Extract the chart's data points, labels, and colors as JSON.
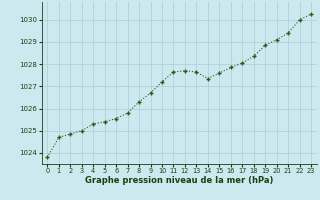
{
  "x": [
    0,
    1,
    2,
    3,
    4,
    5,
    6,
    7,
    8,
    9,
    10,
    11,
    12,
    13,
    14,
    15,
    16,
    17,
    18,
    19,
    20,
    21,
    22,
    23
  ],
  "y": [
    1023.8,
    1024.7,
    1024.85,
    1025.0,
    1025.3,
    1025.4,
    1025.55,
    1025.8,
    1026.3,
    1026.7,
    1027.2,
    1027.65,
    1027.7,
    1027.65,
    1027.35,
    1027.6,
    1027.85,
    1028.05,
    1028.35,
    1028.85,
    1029.1,
    1029.4,
    1030.0,
    1030.25
  ],
  "line_color": "#2d5a1b",
  "marker_color": "#2d5a1b",
  "bg_color": "#cce9f0",
  "grid_color": "#aacdd6",
  "xlabel": "Graphe pression niveau de la mer (hPa)",
  "xlabel_color": "#1a4010",
  "ytick_labels": [
    "1024",
    "1025",
    "1026",
    "1027",
    "1028",
    "1029",
    "1030"
  ],
  "ytick_vals": [
    1024,
    1025,
    1026,
    1027,
    1028,
    1029,
    1030
  ],
  "xticks": [
    0,
    1,
    2,
    3,
    4,
    5,
    6,
    7,
    8,
    9,
    10,
    11,
    12,
    13,
    14,
    15,
    16,
    17,
    18,
    19,
    20,
    21,
    22,
    23
  ],
  "ylim": [
    1023.5,
    1030.8
  ],
  "xlim": [
    -0.5,
    23.5
  ],
  "tick_color": "#1a4010",
  "axis_color": "#1a4010"
}
